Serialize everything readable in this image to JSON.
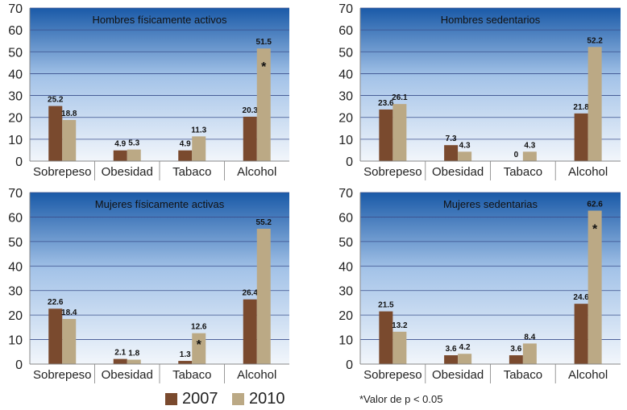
{
  "colors": {
    "series_2007": "#7a4a2e",
    "series_2010": "#bba985",
    "plot_top": "#1a5aa8",
    "plot_mid": "#a4c3e8",
    "plot_bottom": "#f2f6fb",
    "grid": "#3a4f8c"
  },
  "legend": {
    "label_2007": "2007",
    "label_2010": "2010"
  },
  "footnote": "*Valor de p < 0.05",
  "chart_data": [
    {
      "type": "bar",
      "title": "Hombres físicamente activos",
      "categories": [
        "Sobrepeso",
        "Obesidad",
        "Tabaco",
        "Alcohol"
      ],
      "series": [
        {
          "name": "2007",
          "values": [
            25.2,
            4.9,
            4.9,
            20.3
          ]
        },
        {
          "name": "2010",
          "values": [
            18.8,
            5.3,
            11.3,
            51.5
          ]
        }
      ],
      "ylim": [
        0,
        70
      ],
      "yticks": [
        0,
        10,
        20,
        30,
        40,
        50,
        60,
        70
      ],
      "annotations": [
        {
          "category": "Alcohol",
          "series": "2010",
          "text": "*"
        }
      ]
    },
    {
      "type": "bar",
      "title": "Hombres sedentarios",
      "categories": [
        "Sobrepeso",
        "Obesidad",
        "Tabaco",
        "Alcohol"
      ],
      "series": [
        {
          "name": "2007",
          "values": [
            23.6,
            7.3,
            0,
            21.8
          ]
        },
        {
          "name": "2010",
          "values": [
            26.1,
            4.3,
            4.3,
            52.2
          ]
        }
      ],
      "ylim": [
        0,
        70
      ],
      "yticks": [
        0,
        10,
        20,
        30,
        40,
        50,
        60,
        70
      ],
      "annotations": []
    },
    {
      "type": "bar",
      "title": "Mujeres físicamente activas",
      "categories": [
        "Sobrepeso",
        "Obesidad",
        "Tabaco",
        "Alcohol"
      ],
      "series": [
        {
          "name": "2007",
          "values": [
            22.6,
            2.1,
            1.3,
            26.4
          ]
        },
        {
          "name": "2010",
          "values": [
            18.4,
            1.8,
            12.6,
            55.2
          ]
        }
      ],
      "ylim": [
        0,
        70
      ],
      "yticks": [
        0,
        10,
        20,
        30,
        40,
        50,
        60,
        70
      ],
      "annotations": [
        {
          "category": "Tabaco",
          "series": "2010",
          "text": "*"
        }
      ]
    },
    {
      "type": "bar",
      "title": "Mujeres sedentarias",
      "categories": [
        "Sobrepeso",
        "Obesidad",
        "Tabaco",
        "Alcohol"
      ],
      "series": [
        {
          "name": "2007",
          "values": [
            21.5,
            3.6,
            3.6,
            24.6
          ]
        },
        {
          "name": "2010",
          "values": [
            13.2,
            4.2,
            8.4,
            62.6
          ]
        }
      ],
      "ylim": [
        0,
        70
      ],
      "yticks": [
        0,
        10,
        20,
        30,
        40,
        50,
        60,
        70
      ],
      "annotations": [
        {
          "category": "Alcohol",
          "series": "2010",
          "text": "*"
        }
      ]
    }
  ]
}
